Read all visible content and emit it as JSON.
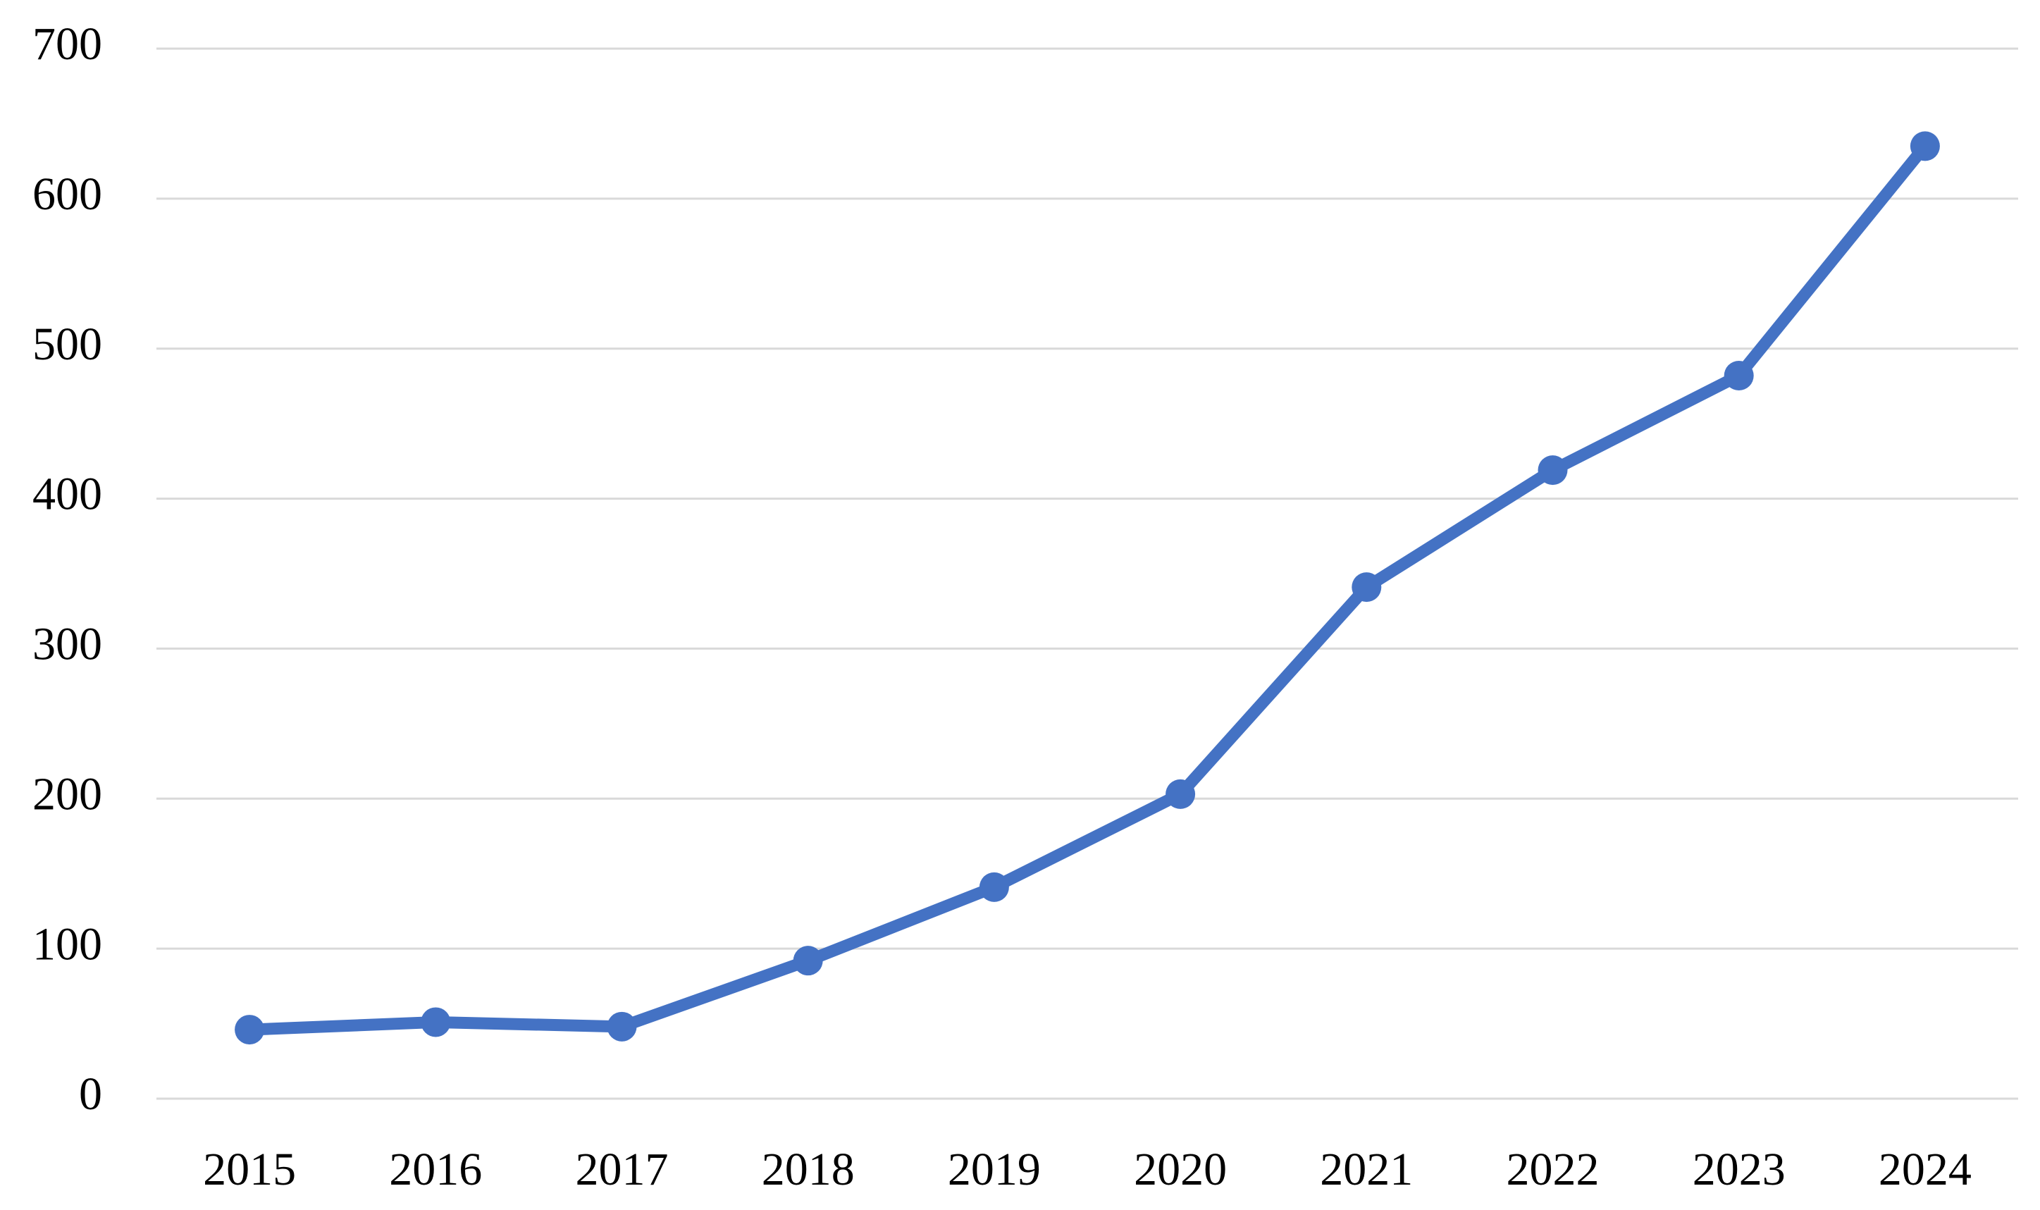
{
  "chart_data": {
    "type": "line",
    "categories": [
      "2015",
      "2016",
      "2017",
      "2018",
      "2019",
      "2020",
      "2021",
      "2022",
      "2023",
      "2024"
    ],
    "values": [
      46,
      51,
      48,
      92,
      141,
      203,
      341,
      419,
      482,
      635
    ],
    "color": "#4472c4",
    "ylim": [
      0,
      700
    ],
    "yticks": [
      0,
      100,
      200,
      300,
      400,
      500,
      600,
      700
    ],
    "grid": true
  }
}
